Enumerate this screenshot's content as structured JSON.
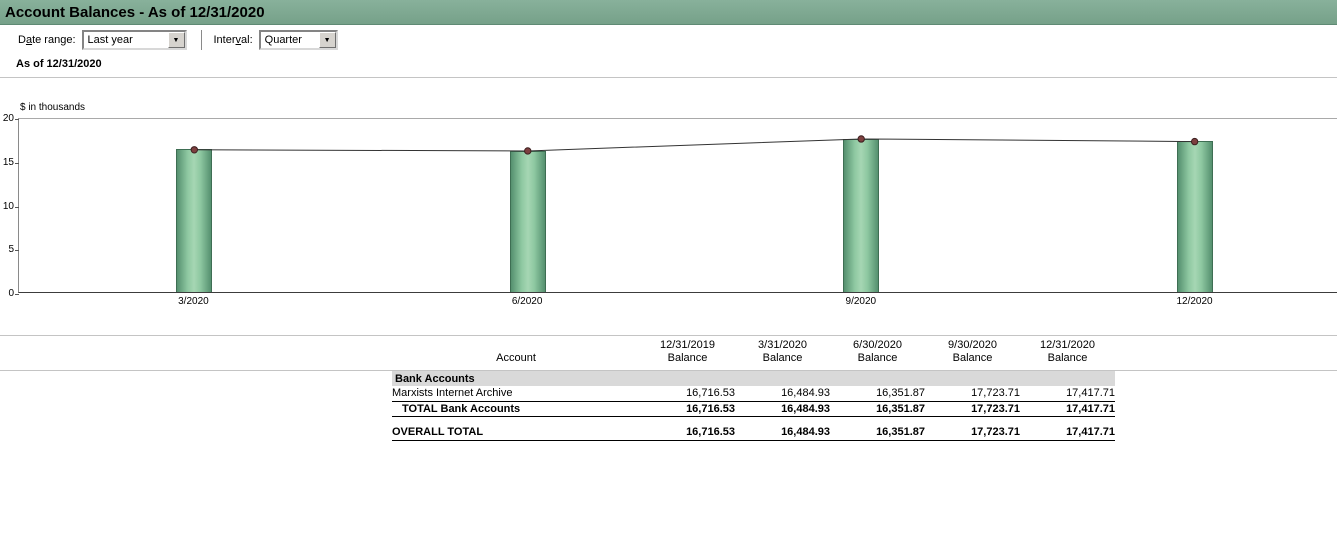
{
  "header": {
    "title": "Account Balances - As of 12/31/2020"
  },
  "controls": {
    "date_range": {
      "label_pre": "D",
      "label_accel": "a",
      "label_post": "te range:",
      "value": "Last year"
    },
    "interval": {
      "label_pre": "Inter",
      "label_accel": "v",
      "label_post": "al:",
      "value": "Quarter"
    }
  },
  "subtitle": "As of 12/31/2020",
  "chart_data": {
    "type": "bar",
    "title": "Account Balances",
    "unit_label": "$ in thousands",
    "categories": [
      "3/2020",
      "6/2020",
      "9/2020",
      "12/2020"
    ],
    "values": [
      16.48,
      16.35,
      17.72,
      17.42
    ],
    "line_overlay": true,
    "ylim": [
      0,
      20
    ],
    "yticks": [
      0,
      5,
      10,
      15,
      20
    ],
    "bar_color": "#8fc9a2",
    "bar_edge": "#3e6e53",
    "line_color": "#333333",
    "marker_color": "#7d3f3f",
    "legend": "none",
    "grid": "top-and-baseline-only"
  },
  "table": {
    "account_header": "Account",
    "column_headers": [
      {
        "line1": "12/31/2019",
        "line2": "Balance"
      },
      {
        "line1": "3/31/2020",
        "line2": "Balance"
      },
      {
        "line1": "6/30/2020",
        "line2": "Balance"
      },
      {
        "line1": "9/30/2020",
        "line2": "Balance"
      },
      {
        "line1": "12/31/2020",
        "line2": "Balance"
      }
    ],
    "sections": [
      {
        "name": "Bank Accounts",
        "rows": [
          {
            "account": "Marxists Internet Archive",
            "values": [
              "16,716.53",
              "16,484.93",
              "16,351.87",
              "17,723.71",
              "17,417.71"
            ]
          }
        ],
        "total": {
          "label": "TOTAL Bank Accounts",
          "values": [
            "16,716.53",
            "16,484.93",
            "16,351.87",
            "17,723.71",
            "17,417.71"
          ]
        }
      }
    ],
    "overall": {
      "label": "OVERALL TOTAL",
      "values": [
        "16,716.53",
        "16,484.93",
        "16,351.87",
        "17,723.71",
        "17,417.71"
      ]
    }
  }
}
